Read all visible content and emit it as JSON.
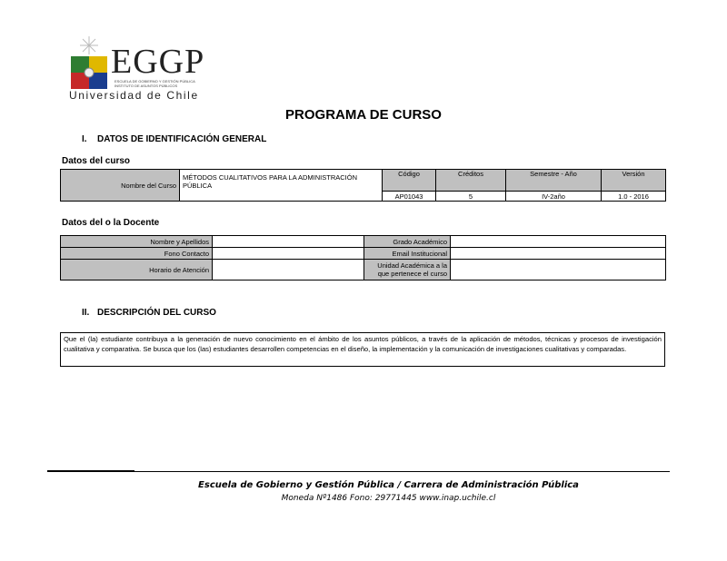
{
  "logo": {
    "text": "EGGP",
    "subtitle": "Universidad de Chile",
    "small1": "ESCUELA DE GOBIERNO Y GESTIÓN PÚBLICA",
    "small2": "INSTITUTO DE ASUNTOS PÚBLICOS"
  },
  "title": "PROGRAMA DE CURSO",
  "section1": {
    "num": "I.",
    "title": "DATOS DE IDENTIFICACIÓN GENERAL"
  },
  "course": {
    "heading": "Datos del curso",
    "name_label": "Nombre del Curso",
    "name": "MÉTODOS CUALITATIVOS PARA LA ADMINISTRACIÓN PÚBLICA",
    "headers": [
      "Código",
      "Créditos",
      "Semestre - Año",
      "Versión"
    ],
    "values": [
      "AP01043",
      "5",
      "IV-2año",
      "1.0 - 2016"
    ]
  },
  "teacher": {
    "heading": "Datos del o la Docente",
    "rows": [
      {
        "l1": "Nombre y Apellidos",
        "v1": "",
        "l2": "Grado Académico",
        "v2": ""
      },
      {
        "l1": "Fono Contacto",
        "v1": "",
        "l2": "Email Institucional",
        "v2": ""
      },
      {
        "l1": "Horario de Atención",
        "v1": "",
        "l2": "Unidad Académica a la que pertenece el curso",
        "v2": ""
      }
    ]
  },
  "section2": {
    "num": "II.",
    "title": "DESCRIPCIÓN DEL CURSO"
  },
  "description": "Que el (la) estudiante contribuya a la generación de nuevo conocimiento en el ámbito de los asuntos públicos, a través de la aplicación de métodos, técnicas y procesos de investigación cualitativa y comparativa. Se busca que los (las) estudiantes desarrollen competencias en el diseño, la implementación y la comunicación de investigaciones cualitativas y comparadas.",
  "footer": {
    "line1": "Escuela de Gobierno y Gestión Pública / Carrera de Administración Pública",
    "line2": "Moneda Nº1486  Fono: 29771445  www.inap.uchile.cl"
  }
}
